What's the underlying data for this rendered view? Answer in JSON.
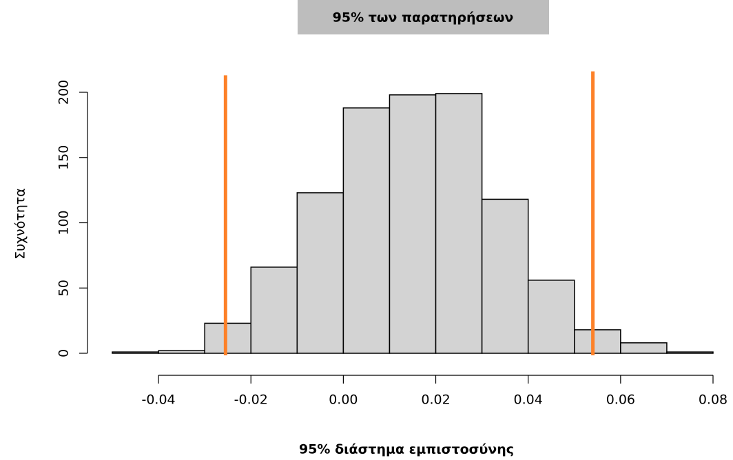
{
  "chart_data": {
    "type": "histogram",
    "title": "95% των παρατηρήσεων",
    "x_label": "95% διάστημα εμπιστοσύνης",
    "y_label": "Συχνότητα",
    "bins": [
      -0.05,
      -0.04,
      -0.03,
      -0.02,
      -0.01,
      0,
      0.01,
      0.02,
      0.03,
      0.04,
      0.05,
      0.06,
      0.07,
      0.08
    ],
    "counts": [
      1,
      2,
      23,
      66,
      123,
      188,
      198,
      199,
      118,
      56,
      18,
      8,
      1
    ],
    "color": "#d3d3d3",
    "xlim": [
      -0.05,
      0.08
    ],
    "xticks": [
      -0.04,
      -0.02,
      {
        "value": 0,
        "label": "0.00"
      },
      0.02,
      0.04,
      0.06,
      0.08
    ],
    "ylim": [
      0,
      200
    ],
    "yticks": [
      0,
      50,
      100,
      150,
      200
    ],
    "reference_lines": [
      {
        "x": -0.0255,
        "y_top": 213
      },
      {
        "x": 0.054,
        "y_top": 216
      }
    ],
    "reference_color": "#fd8128"
  }
}
